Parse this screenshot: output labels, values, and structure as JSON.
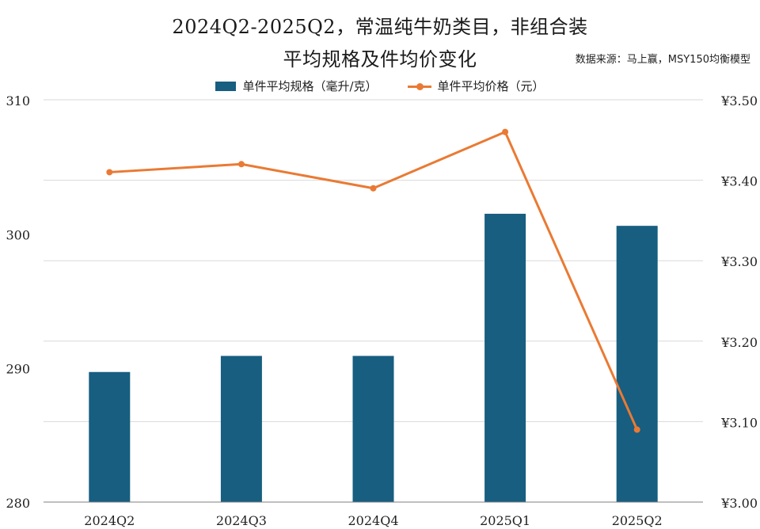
{
  "header": {
    "title_line1": "2024Q2-2025Q2，常温纯牛奶类目，非组合装",
    "title_line2": "平均规格及件均价变化",
    "source": "数据来源：马上赢，MSY150均衡模型"
  },
  "colors": {
    "bar": "#175e80",
    "line": "#ea7a33",
    "grid": "#d9d9d9",
    "axis": "#7f7f7f"
  },
  "chart_data": {
    "type": "bar",
    "title": "2024Q2-2025Q2，常温纯牛奶类目，非组合装 平均规格及件均价变化",
    "categories": [
      "2024Q2",
      "2024Q3",
      "2024Q4",
      "2025Q1",
      "2025Q2"
    ],
    "series": [
      {
        "name": "单件平均规格（毫升/克）",
        "type": "bar",
        "axis": "left",
        "values": [
          289.7,
          290.9,
          290.9,
          301.5,
          300.6
        ]
      },
      {
        "name": "单件平均价格（元）",
        "type": "line",
        "axis": "right",
        "values": [
          3.41,
          3.42,
          3.39,
          3.46,
          3.09
        ]
      }
    ],
    "y_left": {
      "min": 280,
      "max": 310,
      "ticks": [
        310,
        300,
        290,
        280
      ],
      "tick_labels": [
        "310",
        "300",
        "290",
        "280"
      ]
    },
    "y_right": {
      "min": 3.0,
      "max": 3.5,
      "ticks": [
        3.5,
        3.4,
        3.3,
        3.2,
        3.1,
        3.0
      ],
      "tick_labels": [
        "¥3.50",
        "¥3.40",
        "¥3.30",
        "¥3.20",
        "¥3.10",
        "¥3.00"
      ]
    },
    "grid": true,
    "legend_position": "top-center"
  }
}
